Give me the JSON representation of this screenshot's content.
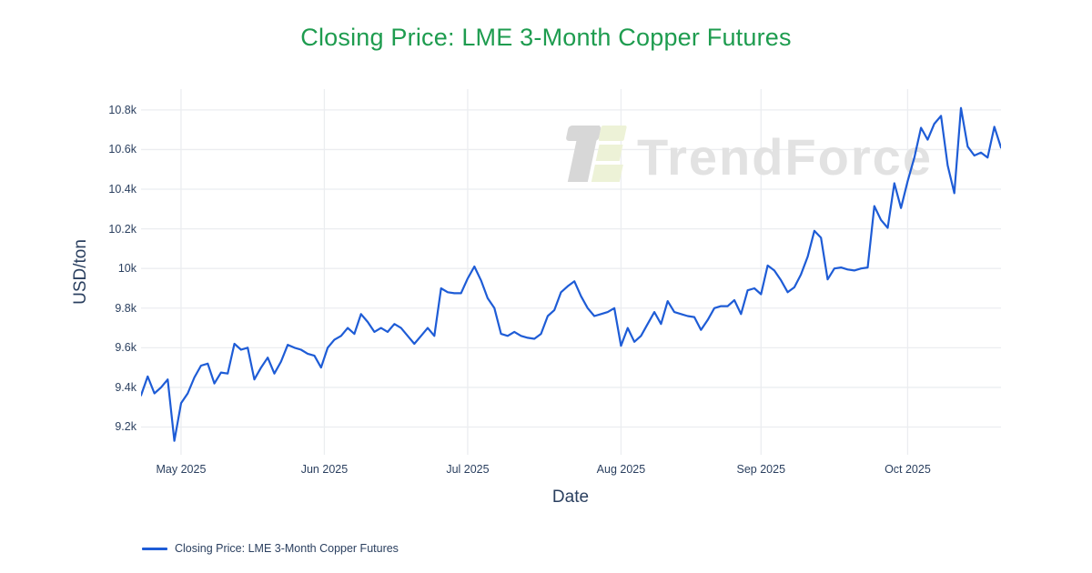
{
  "title": {
    "text": "Closing Price: LME 3-Month Copper Futures"
  },
  "watermark": {
    "text": "TrendForce"
  },
  "legend": {
    "label": "Closing Price: LME 3-Month Copper Futures"
  },
  "colors": {
    "title_green": "#1e9c4f",
    "line_blue": "#1e5cd6",
    "axis_text": "#2a3f5f",
    "gridline": "#ebedf0",
    "tick_mark": "#b0b6c0",
    "watermark_text": "#e2e2e2",
    "watermark_logo_dark": "#d7d7d7",
    "watermark_logo_light": "#edf2d7"
  },
  "chart_data": {
    "type": "line",
    "title": "Closing Price: LME 3-Month Copper Futures",
    "xlabel": "Date",
    "ylabel": "USD/ton",
    "grid": true,
    "legend_position": "bottom-left",
    "ylim": [
      9060,
      10905
    ],
    "y_ticks": [
      {
        "label": "9.2k",
        "value": 9200
      },
      {
        "label": "9.4k",
        "value": 9400
      },
      {
        "label": "9.6k",
        "value": 9600
      },
      {
        "label": "9.8k",
        "value": 9800
      },
      {
        "label": "10k",
        "value": 10000
      },
      {
        "label": "10.2k",
        "value": 10200
      },
      {
        "label": "10.4k",
        "value": 10400
      },
      {
        "label": "10.6k",
        "value": 10600
      },
      {
        "label": "10.8k",
        "value": 10800
      }
    ],
    "x_ticks": [
      {
        "label": "May 2025",
        "date": "2025-05-01"
      },
      {
        "label": "Jun 2025",
        "date": "2025-06-01"
      },
      {
        "label": "Jul 2025",
        "date": "2025-07-01"
      },
      {
        "label": "Aug 2025",
        "date": "2025-08-01"
      },
      {
        "label": "Sep 2025",
        "date": "2025-09-01"
      },
      {
        "label": "Oct 2025",
        "date": "2025-10-01"
      }
    ],
    "series": [
      {
        "name": "Closing Price: LME 3-Month Copper Futures",
        "color": "#1e5cd6",
        "dates": [
          "2025-04-23",
          "2025-04-24",
          "2025-04-25",
          "2025-04-28",
          "2025-04-29",
          "2025-04-30",
          "2025-05-01",
          "2025-05-02",
          "2025-05-05",
          "2025-05-06",
          "2025-05-07",
          "2025-05-08",
          "2025-05-09",
          "2025-05-12",
          "2025-05-13",
          "2025-05-14",
          "2025-05-15",
          "2025-05-16",
          "2025-05-19",
          "2025-05-20",
          "2025-05-21",
          "2025-05-22",
          "2025-05-23",
          "2025-05-26",
          "2025-05-27",
          "2025-05-28",
          "2025-05-29",
          "2025-05-30",
          "2025-06-02",
          "2025-06-03",
          "2025-06-04",
          "2025-06-05",
          "2025-06-06",
          "2025-06-09",
          "2025-06-10",
          "2025-06-11",
          "2025-06-12",
          "2025-06-13",
          "2025-06-16",
          "2025-06-17",
          "2025-06-18",
          "2025-06-19",
          "2025-06-20",
          "2025-06-23",
          "2025-06-24",
          "2025-06-25",
          "2025-06-26",
          "2025-06-27",
          "2025-06-30",
          "2025-07-01",
          "2025-07-02",
          "2025-07-03",
          "2025-07-04",
          "2025-07-07",
          "2025-07-08",
          "2025-07-09",
          "2025-07-10",
          "2025-07-11",
          "2025-07-14",
          "2025-07-15",
          "2025-07-16",
          "2025-07-17",
          "2025-07-18",
          "2025-07-21",
          "2025-07-22",
          "2025-07-23",
          "2025-07-24",
          "2025-07-25",
          "2025-07-28",
          "2025-07-29",
          "2025-07-30",
          "2025-07-31",
          "2025-08-01",
          "2025-08-04",
          "2025-08-05",
          "2025-08-06",
          "2025-08-07",
          "2025-08-08",
          "2025-08-11",
          "2025-08-12",
          "2025-08-13",
          "2025-08-14",
          "2025-08-15",
          "2025-08-18",
          "2025-08-19",
          "2025-08-20",
          "2025-08-21",
          "2025-08-22",
          "2025-08-25",
          "2025-08-26",
          "2025-08-27",
          "2025-08-28",
          "2025-08-29",
          "2025-09-01",
          "2025-09-02",
          "2025-09-03",
          "2025-09-04",
          "2025-09-05",
          "2025-09-08",
          "2025-09-09",
          "2025-09-10",
          "2025-09-11",
          "2025-09-12",
          "2025-09-15",
          "2025-09-16",
          "2025-09-17",
          "2025-09-18",
          "2025-09-19",
          "2025-09-22",
          "2025-09-23",
          "2025-09-24",
          "2025-09-25",
          "2025-09-26",
          "2025-09-29",
          "2025-09-30",
          "2025-10-01",
          "2025-10-02",
          "2025-10-03",
          "2025-10-06",
          "2025-10-07",
          "2025-10-08",
          "2025-10-09",
          "2025-10-10",
          "2025-10-13",
          "2025-10-14",
          "2025-10-15",
          "2025-10-16",
          "2025-10-17",
          "2025-10-20",
          "2025-10-21"
        ],
        "values": [
          9360,
          9455,
          9370,
          9400,
          9440,
          9130,
          9320,
          9370,
          9450,
          9510,
          9520,
          9420,
          9475,
          9470,
          9620,
          9590,
          9600,
          9440,
          9500,
          9550,
          9470,
          9530,
          9615,
          9600,
          9590,
          9570,
          9560,
          9500,
          9600,
          9640,
          9660,
          9700,
          9670,
          9770,
          9730,
          9680,
          9700,
          9680,
          9720,
          9700,
          9660,
          9620,
          9660,
          9700,
          9660,
          9900,
          9880,
          9875,
          9875,
          9950,
          10010,
          9940,
          9850,
          9800,
          9670,
          9660,
          9680,
          9660,
          9650,
          9645,
          9670,
          9760,
          9790,
          9880,
          9910,
          9935,
          9860,
          9800,
          9760,
          9770,
          9780,
          9800,
          9610,
          9700,
          9630,
          9660,
          9720,
          9780,
          9720,
          9835,
          9780,
          9770,
          9760,
          9755,
          9690,
          9740,
          9800,
          9810,
          9810,
          9840,
          9770,
          9890,
          9900,
          9870,
          10015,
          9990,
          9940,
          9880,
          9905,
          9970,
          10060,
          10190,
          10155,
          9945,
          10000,
          10005,
          9995,
          9990,
          10000,
          10005,
          10315,
          10245,
          10205,
          10430,
          10305,
          10440,
          10560,
          10710,
          10650,
          10730,
          10770,
          10520,
          10380,
          10810,
          10615,
          10570,
          10585,
          10560,
          10715,
          10610
        ]
      }
    ]
  }
}
